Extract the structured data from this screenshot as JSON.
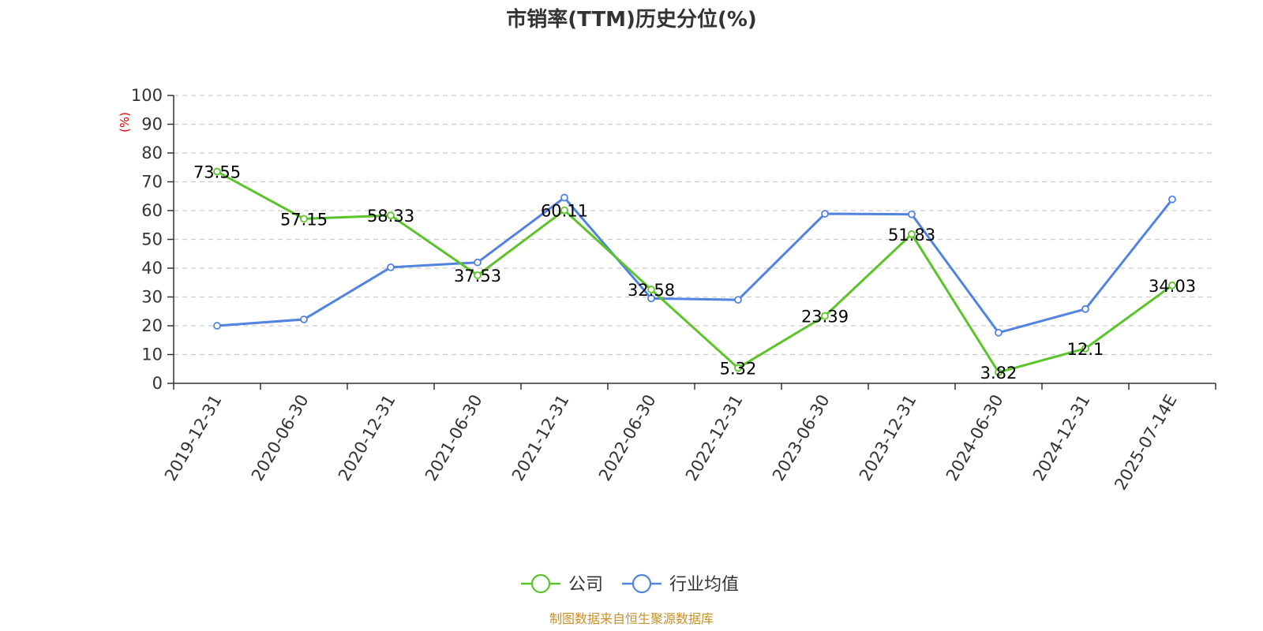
{
  "chart_data": {
    "type": "line",
    "title": "市销率(TTM)历史分位(%)",
    "ylabel": "(%)",
    "ylim": [
      0,
      100
    ],
    "yticks": [
      0,
      10,
      20,
      30,
      40,
      50,
      60,
      70,
      80,
      90,
      100
    ],
    "grid": true,
    "legend_position": "bottom-center",
    "categories": [
      "2019-12-31",
      "2020-06-30",
      "2020-12-31",
      "2021-06-30",
      "2021-12-31",
      "2022-06-30",
      "2022-12-31",
      "2023-06-30",
      "2023-12-31",
      "2024-06-30",
      "2024-12-31",
      "2025-07-14E"
    ],
    "series": [
      {
        "name": "公司",
        "color": "#5cc42b",
        "values": [
          73.55,
          57.15,
          58.33,
          37.53,
          60.11,
          32.58,
          5.32,
          23.39,
          51.83,
          3.82,
          12.1,
          34.03
        ],
        "labels": [
          "73.55",
          "57.15",
          "58.33",
          "37.53",
          "60.11",
          "32.58",
          "5.32",
          "23.39",
          "51.83",
          "3.82",
          "12.1",
          "34.03"
        ]
      },
      {
        "name": "行业均值",
        "color": "#5283e0",
        "values": [
          20.0,
          22.2,
          40.3,
          42.0,
          64.5,
          29.5,
          29.0,
          58.9,
          58.7,
          17.6,
          25.8,
          63.9
        ]
      }
    ],
    "source": "制图数据来自恒生聚源数据库"
  },
  "colors": {
    "axis": "#333333",
    "grid": "#cccccc",
    "ylabel": "#e60000",
    "source": "#c8902a"
  }
}
